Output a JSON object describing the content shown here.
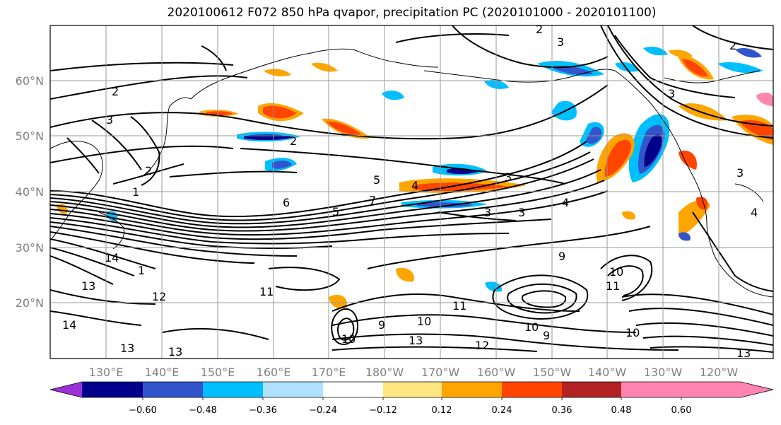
{
  "title": "2020100612 F072 850 hPa qvapor, precipitation PC (2020101000 - 2020101100)",
  "lat_labels": [
    "60°N",
    "50°N",
    "40°N",
    "30°N",
    "20°N"
  ],
  "lon_labels": [
    "130°E",
    "140°E",
    "150°E",
    "160°E",
    "170°E",
    "180°W",
    "170°W",
    "160°W",
    "150°W",
    "140°W",
    "130°W",
    "120°W"
  ],
  "colorbar": {
    "colors": [
      "#9b30d9",
      "#00008b",
      "#3355cc",
      "#00bfff",
      "#b0e2ff",
      "#ffffff",
      "#ffe680",
      "#ffa500",
      "#ff4500",
      "#b22222",
      "#ff85b0"
    ],
    "tick_labels": [
      "−0.60",
      "−0.48",
      "−0.36",
      "−0.24",
      "−0.12",
      "0.12",
      "0.24",
      "0.36",
      "0.48",
      "0.60"
    ]
  },
  "contour_labels": [
    "2",
    "3",
    "2",
    "3",
    "2",
    "3",
    "2",
    "3",
    "4",
    "5",
    "4",
    "3",
    "3",
    "3",
    "4",
    "5",
    "6",
    "7",
    "1",
    "2",
    "14",
    "1",
    "13",
    "12",
    "11",
    "13",
    "13",
    "14",
    "10",
    "11",
    "10",
    "13",
    "12",
    "9",
    "10",
    "9",
    "11",
    "10",
    "9",
    "10",
    "13"
  ]
}
